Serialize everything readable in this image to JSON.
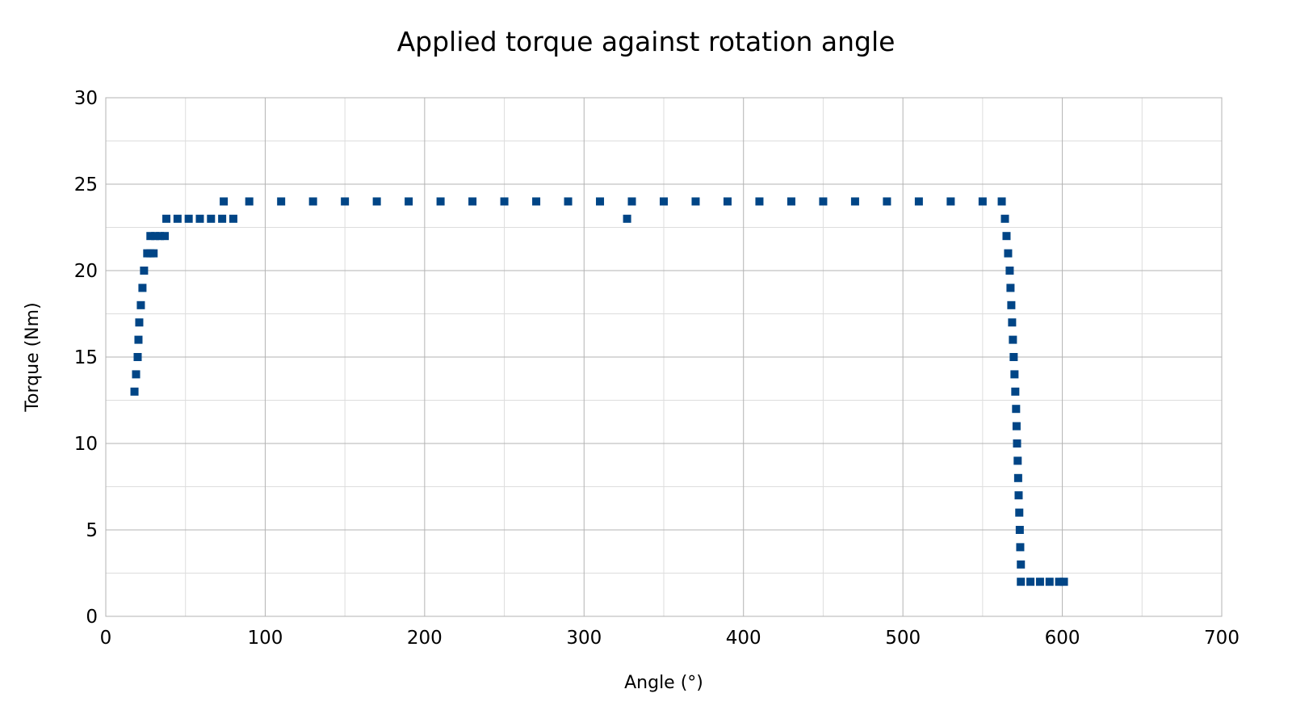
{
  "chart_data": {
    "type": "scatter",
    "title": "Applied torque against rotation angle",
    "xlabel": "Angle (°)",
    "ylabel": "Torque (Nm)",
    "xlim": [
      0,
      700
    ],
    "ylim": [
      0,
      30
    ],
    "x_ticks": [
      0,
      100,
      200,
      300,
      400,
      500,
      600,
      700
    ],
    "y_ticks": [
      0,
      5,
      10,
      15,
      20,
      25,
      30
    ],
    "grid": true,
    "minor_grid": true,
    "marker": "square",
    "series_color": "#004586",
    "grid_color": "#b3b3b3",
    "minor_grid_color": "#dddddd",
    "series": [
      {
        "points": [
          [
            18,
            13
          ],
          [
            19,
            14
          ],
          [
            20,
            15
          ],
          [
            20.5,
            16
          ],
          [
            21,
            17
          ],
          [
            22,
            18
          ],
          [
            23,
            19
          ],
          [
            24,
            20
          ],
          [
            26,
            21
          ],
          [
            28,
            21
          ],
          [
            30,
            21
          ],
          [
            28,
            22
          ],
          [
            31,
            22
          ],
          [
            34,
            22
          ],
          [
            37,
            22
          ],
          [
            38,
            23
          ],
          [
            45,
            23
          ],
          [
            52,
            23
          ],
          [
            59,
            23
          ],
          [
            66,
            23
          ],
          [
            73,
            23
          ],
          [
            80,
            23
          ],
          [
            74,
            24
          ],
          [
            90,
            24
          ],
          [
            110,
            24
          ],
          [
            130,
            24
          ],
          [
            150,
            24
          ],
          [
            170,
            24
          ],
          [
            190,
            24
          ],
          [
            210,
            24
          ],
          [
            230,
            24
          ],
          [
            250,
            24
          ],
          [
            270,
            24
          ],
          [
            290,
            24
          ],
          [
            310,
            24
          ],
          [
            330,
            24
          ],
          [
            350,
            24
          ],
          [
            370,
            24
          ],
          [
            390,
            24
          ],
          [
            410,
            24
          ],
          [
            430,
            24
          ],
          [
            450,
            24
          ],
          [
            470,
            24
          ],
          [
            490,
            24
          ],
          [
            510,
            24
          ],
          [
            530,
            24
          ],
          [
            550,
            24
          ],
          [
            562,
            24
          ],
          [
            327,
            23
          ],
          [
            564,
            23
          ],
          [
            565,
            22
          ],
          [
            566,
            21
          ],
          [
            567,
            20
          ],
          [
            567.5,
            19
          ],
          [
            568,
            18
          ],
          [
            568.5,
            17
          ],
          [
            569,
            16
          ],
          [
            569.5,
            15
          ],
          [
            570,
            14
          ],
          [
            570.5,
            13
          ],
          [
            571,
            12
          ],
          [
            571.3,
            11
          ],
          [
            571.6,
            10
          ],
          [
            572,
            9
          ],
          [
            572.3,
            8
          ],
          [
            572.6,
            7
          ],
          [
            573,
            6
          ],
          [
            573.3,
            5
          ],
          [
            573.6,
            4
          ],
          [
            574,
            3
          ],
          [
            574,
            2
          ],
          [
            580,
            2
          ],
          [
            586,
            2
          ],
          [
            592,
            2
          ],
          [
            598,
            2
          ],
          [
            601,
            2
          ]
        ]
      }
    ]
  }
}
